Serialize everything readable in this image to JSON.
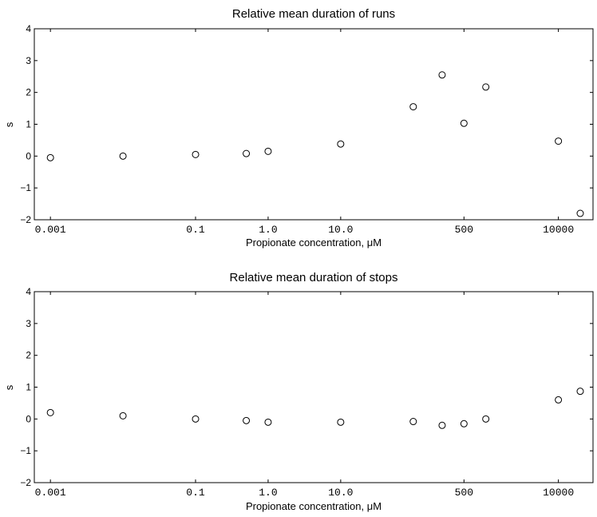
{
  "chart_data": [
    {
      "type": "scatter",
      "title": "Relative mean duration of runs",
      "xlabel": "Propionate concentration, μM",
      "ylabel": "s",
      "x_scale": "log",
      "xlim": [
        0.0006,
        30000
      ],
      "ylim": [
        -2,
        4
      ],
      "x_ticks": [
        0.001,
        0.1,
        1,
        10,
        500,
        10000
      ],
      "x_tick_labels": [
        "0.001",
        "0.1",
        "1.0",
        "10.0",
        "500",
        "10000"
      ],
      "y_ticks": [
        -2,
        -1,
        0,
        1,
        2,
        3,
        4
      ],
      "y_tick_labels": [
        "−2",
        "−1",
        "0",
        "1",
        "2",
        "3",
        "4"
      ],
      "grid": false,
      "x": [
        0.001,
        0.01,
        0.1,
        0.5,
        1,
        10,
        100,
        250,
        500,
        1000,
        10000,
        20000
      ],
      "y": [
        -0.05,
        0.0,
        0.05,
        0.08,
        0.15,
        0.38,
        1.55,
        2.55,
        1.03,
        2.17,
        0.47,
        -1.8
      ]
    },
    {
      "type": "scatter",
      "title": "Relative mean duration of stops",
      "xlabel": "Propionate concentration, μM",
      "ylabel": "s",
      "x_scale": "log",
      "xlim": [
        0.0006,
        30000
      ],
      "ylim": [
        -2,
        4
      ],
      "x_ticks": [
        0.001,
        0.1,
        1,
        10,
        500,
        10000
      ],
      "x_tick_labels": [
        "0.001",
        "0.1",
        "1.0",
        "10.0",
        "500",
        "10000"
      ],
      "y_ticks": [
        -2,
        -1,
        0,
        1,
        2,
        3,
        4
      ],
      "y_tick_labels": [
        "−2",
        "−1",
        "0",
        "1",
        "2",
        "3",
        "4"
      ],
      "grid": false,
      "x": [
        0.001,
        0.01,
        0.1,
        0.5,
        1,
        10,
        100,
        250,
        500,
        1000,
        10000,
        20000
      ],
      "y": [
        0.2,
        0.1,
        0.0,
        -0.05,
        -0.1,
        -0.1,
        -0.08,
        -0.2,
        -0.15,
        0.0,
        0.6,
        0.87
      ]
    }
  ]
}
